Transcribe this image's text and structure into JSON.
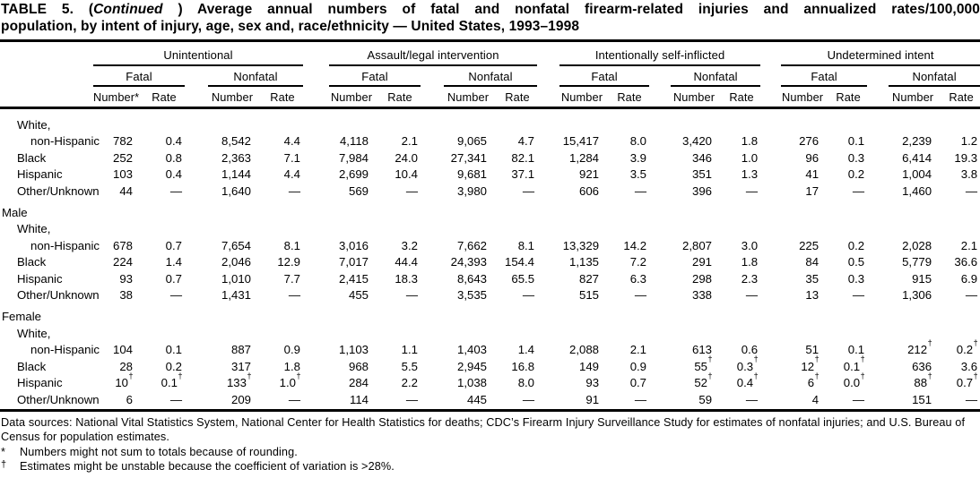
{
  "title": {
    "line1_pre": "TABLE 5. (",
    "line1_italic": "Continued",
    "line1_post": " ) Average annual numbers of fatal and nonfatal firearm-related injuries and annualized rates/100,000",
    "line2": "population, by intent of injury, age, sex and, race/ethnicity — United States, 1993–1998"
  },
  "header": {
    "groups": [
      "Unintentional",
      "Assault/legal intervention",
      "Intentionally self-inflicted",
      "Undetermined intent"
    ],
    "fatal": "Fatal",
    "nonfatal": "Nonfatal",
    "number_star": "Number*",
    "number": "Number",
    "rate": "Rate"
  },
  "sections": [
    {
      "label": "",
      "rows": [
        {
          "label": "White,",
          "indent": 1,
          "values": []
        },
        {
          "label": "non-Hispanic",
          "indent": 2,
          "values": [
            "782",
            "0.4",
            "8,542",
            "4.4",
            "4,118",
            "2.1",
            "9,065",
            "4.7",
            "15,417",
            "8.0",
            "3,420",
            "1.8",
            "276",
            "0.1",
            "2,239",
            "1.2"
          ]
        },
        {
          "label": "Black",
          "indent": 1,
          "values": [
            "252",
            "0.8",
            "2,363",
            "7.1",
            "7,984",
            "24.0",
            "27,341",
            "82.1",
            "1,284",
            "3.9",
            "346",
            "1.0",
            "96",
            "0.3",
            "6,414",
            "19.3"
          ]
        },
        {
          "label": "Hispanic",
          "indent": 1,
          "values": [
            "103",
            "0.4",
            "1,144",
            "4.4",
            "2,699",
            "10.4",
            "9,681",
            "37.1",
            "921",
            "3.5",
            "351",
            "1.3",
            "41",
            "0.2",
            "1,004",
            "3.8"
          ]
        },
        {
          "label": "Other/Unknown",
          "indent": 1,
          "values": [
            "44",
            "—",
            "1,640",
            "—",
            "569",
            "—",
            "3,980",
            "—",
            "606",
            "—",
            "396",
            "—",
            "17",
            "—",
            "1,460",
            "—"
          ]
        }
      ]
    },
    {
      "label": "Male",
      "rows": [
        {
          "label": "White,",
          "indent": 1,
          "values": []
        },
        {
          "label": "non-Hispanic",
          "indent": 2,
          "values": [
            "678",
            "0.7",
            "7,654",
            "8.1",
            "3,016",
            "3.2",
            "7,662",
            "8.1",
            "13,329",
            "14.2",
            "2,807",
            "3.0",
            "225",
            "0.2",
            "2,028",
            "2.1"
          ]
        },
        {
          "label": "Black",
          "indent": 1,
          "values": [
            "224",
            "1.4",
            "2,046",
            "12.9",
            "7,017",
            "44.4",
            "24,393",
            "154.4",
            "1,135",
            "7.2",
            "291",
            "1.8",
            "84",
            "0.5",
            "5,779",
            "36.6"
          ]
        },
        {
          "label": "Hispanic",
          "indent": 1,
          "values": [
            "93",
            "0.7",
            "1,010",
            "7.7",
            "2,415",
            "18.3",
            "8,643",
            "65.5",
            "827",
            "6.3",
            "298",
            "2.3",
            "35",
            "0.3",
            "915",
            "6.9"
          ]
        },
        {
          "label": "Other/Unknown",
          "indent": 1,
          "values": [
            "38",
            "—",
            "1,431",
            "—",
            "455",
            "—",
            "3,535",
            "—",
            "515",
            "—",
            "338",
            "—",
            "13",
            "—",
            "1,306",
            "—"
          ]
        }
      ]
    },
    {
      "label": "Female",
      "rows": [
        {
          "label": "White,",
          "indent": 1,
          "values": []
        },
        {
          "label": "non-Hispanic",
          "indent": 2,
          "values": [
            "104",
            "0.1",
            "887",
            "0.9",
            "1,103",
            "1.1",
            "1,403",
            "1.4",
            "2,088",
            "2.1",
            "613",
            "0.6",
            "51",
            "0.1",
            "212†",
            "0.2†"
          ]
        },
        {
          "label": "Black",
          "indent": 1,
          "values": [
            "28",
            "0.2",
            "317",
            "1.8",
            "968",
            "5.5",
            "2,945",
            "16.8",
            "149",
            "0.9",
            "55†",
            "0.3†",
            "12†",
            "0.1†",
            "636",
            "3.6"
          ]
        },
        {
          "label": "Hispanic",
          "indent": 1,
          "values": [
            "10†",
            "0.1†",
            "133†",
            "1.0†",
            "284",
            "2.2",
            "1,038",
            "8.0",
            "93",
            "0.7",
            "52†",
            "0.4†",
            "6†",
            "0.0†",
            "88†",
            "0.7†"
          ]
        },
        {
          "label": "Other/Unknown",
          "indent": 1,
          "values": [
            "6",
            "—",
            "209",
            "—",
            "114",
            "—",
            "445",
            "—",
            "91",
            "—",
            "59",
            "—",
            "4",
            "—",
            "151",
            "—"
          ]
        }
      ]
    }
  ],
  "footnotes": {
    "data_sources": "Data sources: National Vital Statistics System, National Center for Health Statistics for deaths; CDC’s Firearm Injury Surveillance Study for estimates of nonfatal injuries; and U.S. Bureau of Census for population estimates.",
    "star_mark": "*",
    "star_text": "Numbers might not sum to totals because of rounding.",
    "dagger_mark": "†",
    "dagger_text": "Estimates might be unstable because the coefficient of variation is >28%."
  }
}
